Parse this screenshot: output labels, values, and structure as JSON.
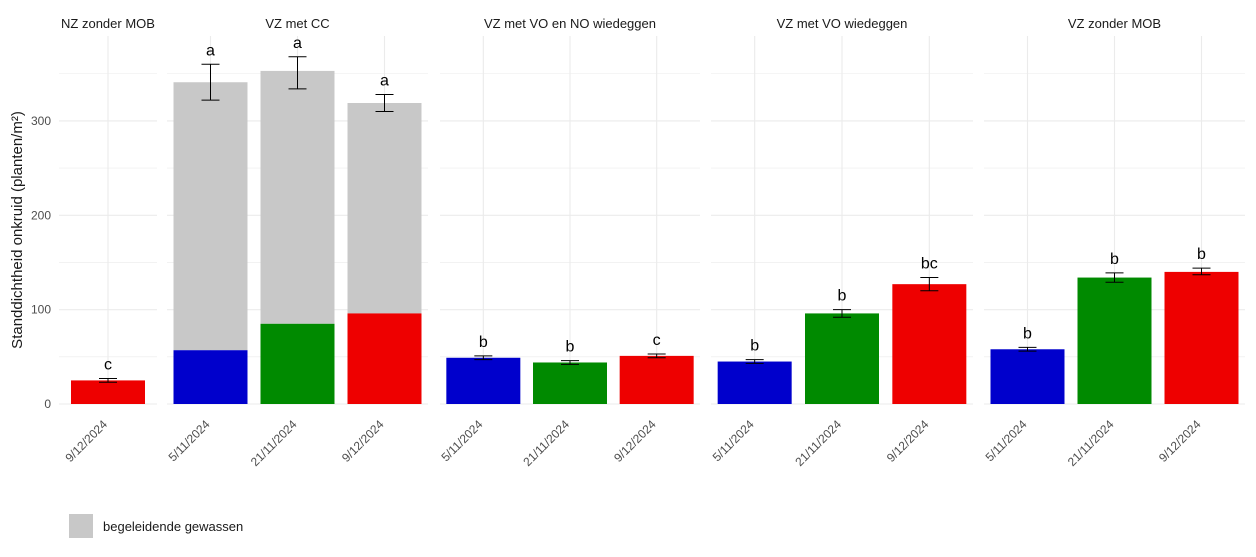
{
  "colors": {
    "companion": "#c8c8c8",
    "blue": "#0000cc",
    "green": "#008a00",
    "red": "#ee0000",
    "grid": "#ebebeb"
  },
  "chart_data": {
    "type": "bar",
    "ylabel": "Standdichtheid onkruid (planten/m²)",
    "ylim": [
      0,
      390
    ],
    "yticks": [
      0,
      100,
      200,
      300
    ],
    "grid": true,
    "legend": {
      "position": "bottom-left",
      "entries": [
        {
          "label": "begeleidende gewassen",
          "color": "#c8c8c8"
        }
      ]
    },
    "panels": [
      {
        "title": "NZ zonder MOB",
        "bars": [
          {
            "date": "9/12/2024",
            "weed": 25,
            "companion": 0,
            "error": [
              23,
              27
            ],
            "label": "c",
            "color": "red"
          }
        ]
      },
      {
        "title": "VZ met CC",
        "bars": [
          {
            "date": "5/11/2024",
            "weed": 57,
            "companion": 284,
            "error": [
              322,
              360
            ],
            "label": "a",
            "color": "blue"
          },
          {
            "date": "21/11/2024",
            "weed": 85,
            "companion": 268,
            "error": [
              334,
              368
            ],
            "label": "a",
            "color": "green"
          },
          {
            "date": "9/12/2024",
            "weed": 96,
            "companion": 223,
            "error": [
              310,
              328
            ],
            "label": "a",
            "color": "red"
          }
        ]
      },
      {
        "title": "VZ met VO en NO wiedeggen",
        "bars": [
          {
            "date": "5/11/2024",
            "weed": 49,
            "companion": 0,
            "error": [
              47,
              51
            ],
            "label": "b",
            "color": "blue"
          },
          {
            "date": "21/11/2024",
            "weed": 44,
            "companion": 0,
            "error": [
              42,
              46
            ],
            "label": "b",
            "color": "green"
          },
          {
            "date": "9/12/2024",
            "weed": 51,
            "companion": 0,
            "error": [
              49,
              53
            ],
            "label": "c",
            "color": "red"
          }
        ]
      },
      {
        "title": "VZ met VO wiedeggen",
        "bars": [
          {
            "date": "5/11/2024",
            "weed": 45,
            "companion": 0,
            "error": [
              43,
              47
            ],
            "label": "b",
            "color": "blue"
          },
          {
            "date": "21/11/2024",
            "weed": 96,
            "companion": 0,
            "error": [
              92,
              100
            ],
            "label": "b",
            "color": "green"
          },
          {
            "date": "9/12/2024",
            "weed": 127,
            "companion": 0,
            "error": [
              120,
              134
            ],
            "label": "bc",
            "color": "red"
          }
        ]
      },
      {
        "title": "VZ zonder MOB",
        "bars": [
          {
            "date": "5/11/2024",
            "weed": 58,
            "companion": 0,
            "error": [
              56,
              60
            ],
            "label": "b",
            "color": "blue"
          },
          {
            "date": "21/11/2024",
            "weed": 134,
            "companion": 0,
            "error": [
              129,
              139
            ],
            "label": "b",
            "color": "green"
          },
          {
            "date": "9/12/2024",
            "weed": 140,
            "companion": 0,
            "error": [
              137,
              144
            ],
            "label": "b",
            "color": "red"
          }
        ]
      }
    ]
  }
}
